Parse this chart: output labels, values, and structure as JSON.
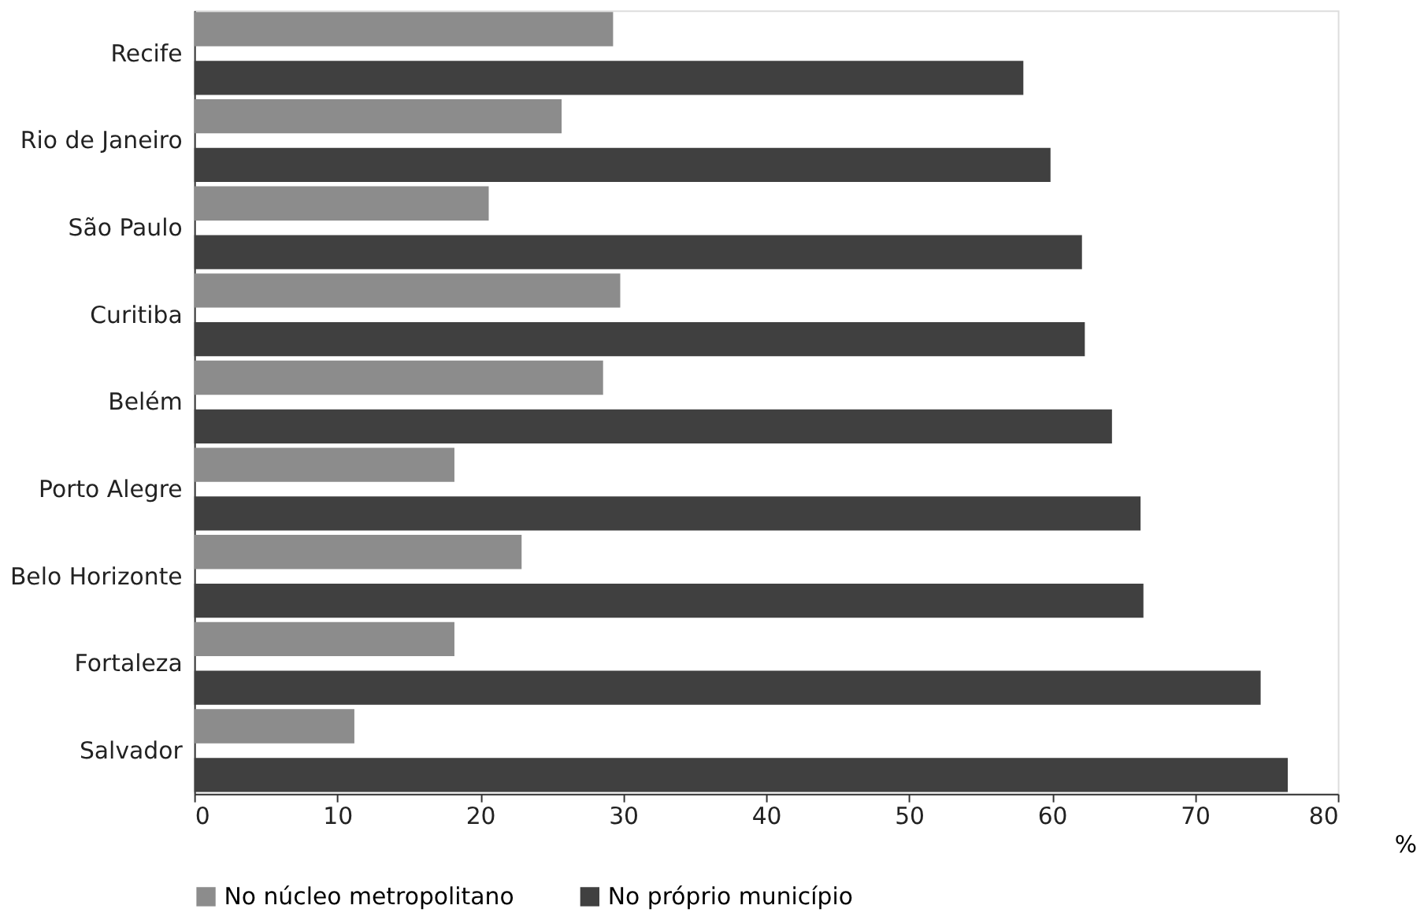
{
  "chart_data": {
    "type": "bar",
    "orientation": "horizontal",
    "xlabel": "%",
    "categories": [
      "Recife",
      "Rio de Janeiro",
      "São Paulo",
      "Curitiba",
      "Belém",
      "Porto Alegre",
      "Belo Horizonte",
      "Fortaleza",
      "Salvador"
    ],
    "series": [
      {
        "name": "No núcleo metropolitano",
        "color": "#8c8c8c",
        "values": [
          29.3,
          25.7,
          20.6,
          29.8,
          28.6,
          18.2,
          22.9,
          18.2,
          11.2
        ]
      },
      {
        "name": "No próprio município",
        "color": "#404040",
        "values": [
          58.0,
          59.9,
          62.1,
          62.3,
          64.2,
          66.2,
          66.4,
          74.6,
          76.5
        ]
      }
    ],
    "xlim": [
      0,
      80
    ],
    "xticks": [
      0,
      10,
      20,
      30,
      40,
      50,
      60,
      70,
      80
    ],
    "grid": false,
    "legend": "bottom"
  }
}
